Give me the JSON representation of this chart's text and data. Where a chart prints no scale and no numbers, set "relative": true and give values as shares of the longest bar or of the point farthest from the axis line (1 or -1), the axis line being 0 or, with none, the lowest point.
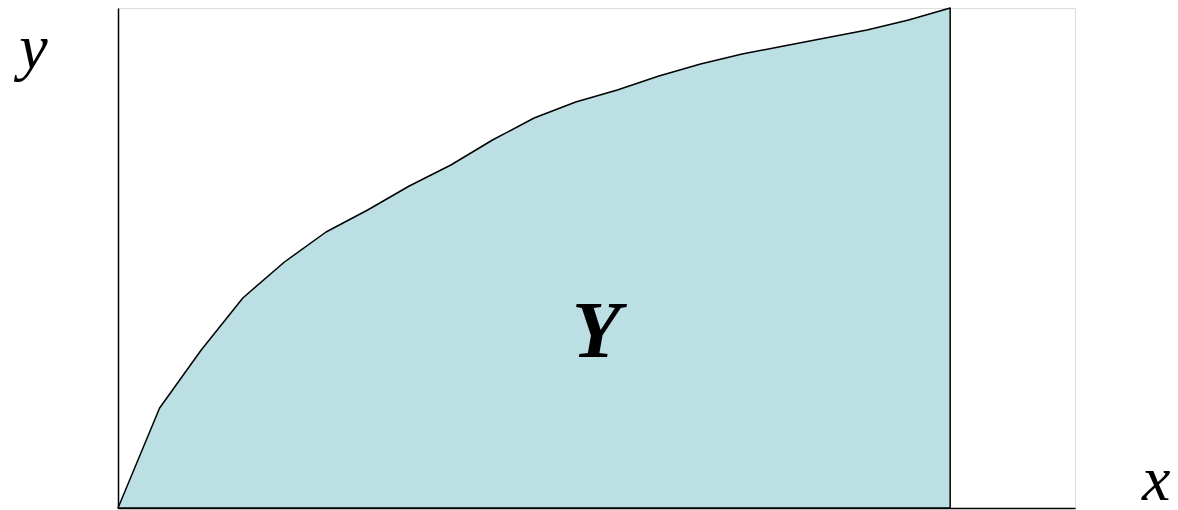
{
  "chart_data": {
    "type": "area",
    "relative": true,
    "xlabel": "x",
    "ylabel": "y",
    "tick_labels": false,
    "grid": false,
    "categories": [
      null,
      null,
      null,
      null,
      null,
      null,
      null,
      null,
      null,
      null,
      null,
      null,
      null,
      null,
      null,
      null,
      null,
      null,
      null,
      null,
      null,
      null,
      null,
      null
    ],
    "series": [
      {
        "color": "#bbdfe3",
        "values": [
          0,
          0.2,
          0.316,
          0.42,
          0.492,
          0.552,
          0.596,
          0.644,
          0.686,
          0.736,
          0.78,
          0.812,
          0.836,
          0.864,
          0.888,
          0.908,
          0.924,
          0.94,
          0.956,
          0.976,
          1.0,
          null,
          null,
          null
        ]
      }
    ],
    "annotations": [
      "Y"
    ]
  }
}
